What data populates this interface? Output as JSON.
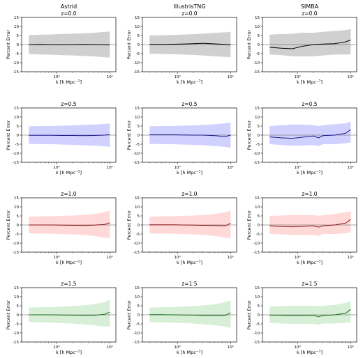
{
  "figure": {
    "columns": [
      "Astrid",
      "IllustrisTNG",
      "SIMBA"
    ],
    "ylabel": "Percent Error",
    "xlabel": "k [h Mpc$^{-1}$]",
    "xscale": "log",
    "xlim": [
      0.22,
      13
    ],
    "ylim": [
      -15,
      15
    ],
    "yticks": [
      -15,
      -10,
      -5,
      0,
      5,
      10,
      15
    ],
    "xticks": [
      {
        "value": 1,
        "label": "10⁰"
      },
      {
        "value": 10,
        "label": "10¹"
      }
    ],
    "rows": [
      {
        "z_label": "z=0.0",
        "line_color": "#000000",
        "band_color": "#c8c8c8"
      },
      {
        "z_label": "z=0.5",
        "line_color": "#1a1a8c",
        "band_color": "#c9c9ff"
      },
      {
        "z_label": "z=1.0",
        "line_color": "#8b1a1a",
        "band_color": "#ffd1d1"
      },
      {
        "z_label": "z=1.5",
        "line_color": "#1f6b1f",
        "band_color": "#cfeccf"
      }
    ]
  },
  "chart_data": [
    {
      "type": "line",
      "title": "Astrid",
      "subtitle": "z=0.0",
      "xlabel": "k [h Mpc$^{-1}$]",
      "ylabel": "Percent Error",
      "xscale": "log",
      "ylim": [
        -15,
        15
      ],
      "x": [
        0.3,
        0.5,
        0.8,
        1.2,
        2,
        3,
        5,
        8,
        10
      ],
      "series": [
        {
          "values": [
            0.0,
            0.1,
            0.0,
            -0.1,
            0.0,
            0.1,
            0.0,
            -0.1,
            -0.2
          ]
        }
      ],
      "band": {
        "upper": [
          5.2,
          5.5,
          5.6,
          5.8,
          6.0,
          6.2,
          6.5,
          7.0,
          7.2
        ],
        "lower": [
          -5.2,
          -5.5,
          -5.6,
          -5.8,
          -6.0,
          -6.2,
          -6.5,
          -7.0,
          -7.2
        ]
      }
    },
    {
      "type": "line",
      "title": "IllustrisTNG",
      "subtitle": "z=0.0",
      "xlabel": "k [h Mpc$^{-1}$]",
      "ylabel": "Percent Error",
      "xscale": "log",
      "ylim": [
        -15,
        15
      ],
      "x": [
        0.3,
        0.5,
        0.8,
        1.2,
        2,
        3,
        5,
        8,
        10
      ],
      "series": [
        {
          "values": [
            0.1,
            0.1,
            0.2,
            0.3,
            0.5,
            0.7,
            0.4,
            0.1,
            -0.2
          ]
        }
      ],
      "band": {
        "upper": [
          5.0,
          5.2,
          5.3,
          5.5,
          5.7,
          6.0,
          6.5,
          6.8,
          7.0
        ],
        "lower": [
          -5.0,
          -5.2,
          -5.3,
          -5.5,
          -5.7,
          -6.0,
          -6.5,
          -6.8,
          -7.0
        ]
      }
    },
    {
      "type": "line",
      "title": "SIMBA",
      "subtitle": "z=0.0",
      "xlabel": "k [h Mpc$^{-1}$]",
      "ylabel": "Percent Error",
      "xscale": "log",
      "ylim": [
        -15,
        15
      ],
      "x": [
        0.3,
        0.5,
        0.8,
        1.2,
        2,
        3,
        5,
        8,
        10
      ],
      "series": [
        {
          "values": [
            -1.5,
            -2.0,
            -2.3,
            -1.0,
            0.0,
            0.3,
            0.5,
            1.5,
            2.5
          ]
        }
      ],
      "band": {
        "upper": [
          5.5,
          5.8,
          6.0,
          6.5,
          6.5,
          7.0,
          7.5,
          8.0,
          8.5
        ],
        "lower": [
          -5.5,
          -5.8,
          -6.5,
          -6.5,
          -6.5,
          -6.0,
          -5.5,
          -5.5,
          -5.5
        ]
      }
    },
    {
      "type": "line",
      "title": "Astrid",
      "subtitle": "z=0.5",
      "xlabel": "k [h Mpc$^{-1}$]",
      "ylabel": "Percent Error",
      "xscale": "log",
      "ylim": [
        -15,
        15
      ],
      "x": [
        0.3,
        0.5,
        0.8,
        1.2,
        2,
        3,
        5,
        8,
        10
      ],
      "series": [
        {
          "values": [
            -0.1,
            -0.1,
            -0.1,
            -0.2,
            -0.2,
            -0.3,
            -0.2,
            0.0,
            0.3
          ]
        }
      ],
      "band": {
        "upper": [
          4.8,
          5.0,
          5.0,
          5.2,
          5.4,
          5.6,
          5.8,
          6.2,
          6.5
        ],
        "lower": [
          -4.8,
          -5.0,
          -5.0,
          -5.2,
          -5.4,
          -5.6,
          -5.8,
          -6.2,
          -6.5
        ]
      }
    },
    {
      "type": "line",
      "title": "IllustrisTNG",
      "subtitle": "z=0.5",
      "xlabel": "k [h Mpc$^{-1}$]",
      "ylabel": "Percent Error",
      "xscale": "log",
      "ylim": [
        -15,
        15
      ],
      "x": [
        0.3,
        0.5,
        0.8,
        1.2,
        2,
        3,
        5,
        8,
        10
      ],
      "series": [
        {
          "values": [
            0.2,
            0.2,
            0.2,
            0.1,
            0.0,
            0.0,
            -0.3,
            -0.8,
            0.0
          ]
        }
      ],
      "band": {
        "upper": [
          4.8,
          5.0,
          5.0,
          5.2,
          5.4,
          5.6,
          6.0,
          6.5,
          7.0
        ],
        "lower": [
          -4.8,
          -5.0,
          -5.0,
          -5.2,
          -5.4,
          -5.6,
          -6.0,
          -6.5,
          -7.0
        ]
      }
    },
    {
      "type": "line",
      "title": "SIMBA",
      "subtitle": "z=0.5",
      "xlabel": "k [h Mpc$^{-1}$]",
      "ylabel": "Percent Error",
      "xscale": "log",
      "ylim": [
        -15,
        15
      ],
      "x": [
        0.3,
        0.5,
        0.8,
        1.2,
        2,
        2.5,
        3,
        5,
        8,
        10
      ],
      "series": [
        {
          "values": [
            -1.0,
            -1.5,
            -1.8,
            -1.2,
            -0.5,
            -1.5,
            -0.3,
            0.0,
            1.0,
            3.0
          ]
        }
      ],
      "band": {
        "upper": [
          5.0,
          5.5,
          5.8,
          5.8,
          5.5,
          5.0,
          5.5,
          6.0,
          6.5,
          7.5
        ],
        "lower": [
          -5.0,
          -5.5,
          -5.8,
          -5.8,
          -5.5,
          -6.0,
          -5.0,
          -5.0,
          -4.5,
          -4.0
        ]
      }
    },
    {
      "type": "line",
      "title": "Astrid",
      "subtitle": "z=1.0",
      "xlabel": "k [h Mpc$^{-1}$]",
      "ylabel": "Percent Error",
      "xscale": "log",
      "ylim": [
        -15,
        15
      ],
      "x": [
        0.3,
        0.5,
        0.8,
        1.2,
        2,
        3,
        5,
        8,
        10
      ],
      "series": [
        {
          "values": [
            0.0,
            0.0,
            0.0,
            -0.1,
            -0.2,
            -0.3,
            -0.1,
            0.3,
            1.2
          ]
        }
      ],
      "band": {
        "upper": [
          4.5,
          4.8,
          4.8,
          5.0,
          5.2,
          5.5,
          6.0,
          7.0,
          8.0
        ],
        "lower": [
          -4.5,
          -4.8,
          -4.8,
          -5.0,
          -5.2,
          -5.5,
          -6.0,
          -7.0,
          -7.0
        ]
      }
    },
    {
      "type": "line",
      "title": "IllustrisTNG",
      "subtitle": "z=1.0",
      "xlabel": "k [h Mpc$^{-1}$]",
      "ylabel": "Percent Error",
      "xscale": "log",
      "ylim": [
        -15,
        15
      ],
      "x": [
        0.3,
        0.5,
        0.8,
        1.2,
        2,
        3,
        5,
        8,
        10
      ],
      "series": [
        {
          "values": [
            0.1,
            0.1,
            0.1,
            0.0,
            -0.1,
            -0.2,
            -0.3,
            -0.5,
            1.0
          ]
        }
      ],
      "band": {
        "upper": [
          4.5,
          4.8,
          4.8,
          5.0,
          5.2,
          5.5,
          6.0,
          7.0,
          8.0
        ],
        "lower": [
          -4.5,
          -4.8,
          -4.8,
          -5.0,
          -5.2,
          -5.5,
          -6.0,
          -7.0,
          -7.5
        ]
      }
    },
    {
      "type": "line",
      "title": "SIMBA",
      "subtitle": "z=1.0",
      "xlabel": "k [h Mpc$^{-1}$]",
      "ylabel": "Percent Error",
      "xscale": "log",
      "ylim": [
        -15,
        15
      ],
      "x": [
        0.3,
        0.5,
        0.8,
        1.2,
        2,
        2.5,
        3,
        5,
        8,
        10
      ],
      "series": [
        {
          "values": [
            -0.5,
            -0.8,
            -1.0,
            -0.8,
            -0.5,
            -1.2,
            -0.5,
            0.0,
            1.0,
            3.0
          ]
        }
      ],
      "band": {
        "upper": [
          5.0,
          5.2,
          5.5,
          5.5,
          5.5,
          5.0,
          5.5,
          6.0,
          7.0,
          7.5
        ],
        "lower": [
          -5.0,
          -5.2,
          -5.5,
          -5.5,
          -5.5,
          -6.0,
          -5.0,
          -5.0,
          -4.5,
          -4.0
        ]
      }
    },
    {
      "type": "line",
      "title": "Astrid",
      "subtitle": "z=1.5",
      "xlabel": "k [h Mpc$^{-1}$]",
      "ylabel": "Percent Error",
      "xscale": "log",
      "ylim": [
        -15,
        15
      ],
      "x": [
        0.3,
        0.5,
        0.8,
        1.2,
        2,
        3,
        5,
        8,
        10
      ],
      "series": [
        {
          "values": [
            0.0,
            0.0,
            0.0,
            -0.1,
            -0.2,
            -0.3,
            -0.3,
            0.3,
            1.5
          ]
        }
      ],
      "band": {
        "upper": [
          4.0,
          4.2,
          4.3,
          4.5,
          4.8,
          5.2,
          5.8,
          7.0,
          8.5
        ],
        "lower": [
          -4.0,
          -4.2,
          -4.3,
          -4.5,
          -4.8,
          -5.2,
          -5.8,
          -6.5,
          -6.5
        ]
      }
    },
    {
      "type": "line",
      "title": "IllustrisTNG",
      "subtitle": "z=1.5",
      "xlabel": "k [h Mpc$^{-1}$]",
      "ylabel": "Percent Error",
      "xscale": "log",
      "ylim": [
        -15,
        15
      ],
      "x": [
        0.3,
        0.5,
        0.8,
        1.2,
        2,
        3,
        5,
        8,
        10
      ],
      "series": [
        {
          "values": [
            0.1,
            0.1,
            0.0,
            -0.1,
            -0.2,
            -0.4,
            -0.6,
            -0.3,
            1.2
          ]
        }
      ],
      "band": {
        "upper": [
          4.0,
          4.2,
          4.3,
          4.5,
          4.8,
          5.2,
          5.8,
          7.0,
          8.0
        ],
        "lower": [
          -4.0,
          -4.2,
          -4.3,
          -4.5,
          -4.8,
          -5.2,
          -5.8,
          -6.5,
          -7.0
        ]
      }
    },
    {
      "type": "line",
      "title": "SIMBA",
      "subtitle": "z=1.5",
      "xlabel": "k [h Mpc$^{-1}$]",
      "ylabel": "Percent Error",
      "xscale": "log",
      "ylim": [
        -15,
        15
      ],
      "x": [
        0.3,
        0.5,
        0.8,
        1.2,
        2,
        2.5,
        3,
        5,
        8,
        10
      ],
      "series": [
        {
          "values": [
            -0.2,
            -0.3,
            -0.5,
            -0.4,
            -0.3,
            -1.0,
            -0.4,
            0.0,
            0.8,
            3.0
          ]
        }
      ],
      "band": {
        "upper": [
          4.5,
          4.8,
          5.0,
          5.0,
          5.0,
          4.8,
          5.0,
          5.5,
          6.5,
          7.5
        ],
        "lower": [
          -4.5,
          -4.8,
          -5.0,
          -5.0,
          -5.0,
          -5.5,
          -4.8,
          -4.8,
          -4.5,
          -4.0
        ]
      }
    }
  ]
}
